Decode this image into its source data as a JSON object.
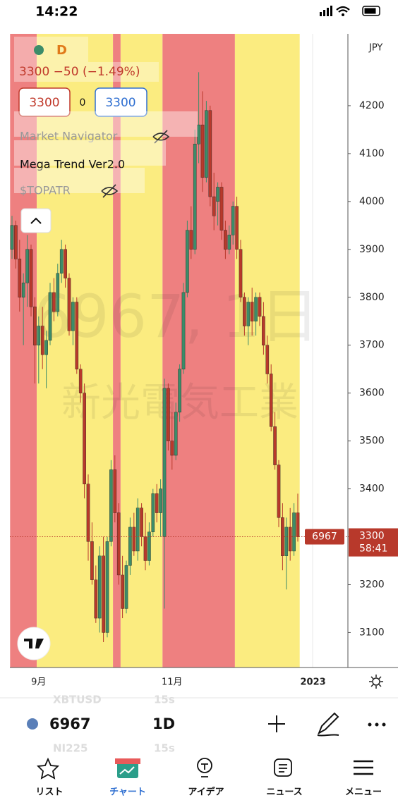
{
  "status": {
    "time": "14:22"
  },
  "chart_data": {
    "type": "candlestick",
    "currency": "JPY",
    "watermark": [
      "6967, 1日",
      "新光電気工業"
    ],
    "legend": {
      "interval": "D",
      "quote": "3300 −50 (−1.49%)",
      "bid": "3300",
      "spread": "0",
      "ask": "3300",
      "indicators": [
        "Market Navigator",
        "Mega Trend Ver2.0",
        "$TOPATR"
      ]
    },
    "ylim": [
      3030,
      4350
    ],
    "yticks": [
      3100,
      3200,
      3300,
      3400,
      3500,
      3600,
      3700,
      3800,
      3900,
      4000,
      4100,
      4200
    ],
    "up_color": "#3c8c69",
    "down_color": "#b8392b",
    "x_labels": [
      {
        "label": "9月",
        "index": 7
      },
      {
        "label": "11月",
        "index": 42
      },
      {
        "label": "2023",
        "index": 79
      }
    ],
    "zones": [
      {
        "start": 0,
        "end": 6,
        "color": "#ee8080"
      },
      {
        "start": 7,
        "end": 26,
        "color": "#fbec80"
      },
      {
        "start": 27,
        "end": 28,
        "color": "#ee8080"
      },
      {
        "start": 29,
        "end": 39,
        "color": "#fbec80"
      },
      {
        "start": 40,
        "end": 58,
        "color": "#ee8080"
      },
      {
        "start": 59,
        "end": 75,
        "color": "#fbec80"
      }
    ],
    "candles": [
      [
        3900,
        3970,
        3880,
        3950
      ],
      [
        3950,
        3960,
        3860,
        3880
      ],
      [
        3880,
        3920,
        3770,
        3800
      ],
      [
        3800,
        3850,
        3700,
        3830
      ],
      [
        3830,
        3930,
        3780,
        3900
      ],
      [
        3900,
        3910,
        3760,
        3780
      ],
      [
        3780,
        3800,
        3620,
        3700
      ],
      [
        3700,
        3760,
        3620,
        3740
      ],
      [
        3740,
        3780,
        3650,
        3680
      ],
      [
        3680,
        3730,
        3610,
        3710
      ],
      [
        3710,
        3830,
        3700,
        3810
      ],
      [
        3810,
        3840,
        3750,
        3770
      ],
      [
        3770,
        3870,
        3760,
        3850
      ],
      [
        3850,
        3920,
        3830,
        3900
      ],
      [
        3900,
        3910,
        3820,
        3840
      ],
      [
        3840,
        3850,
        3720,
        3730
      ],
      [
        3730,
        3800,
        3700,
        3790
      ],
      [
        3790,
        3800,
        3640,
        3650
      ],
      [
        3650,
        3660,
        3580,
        3600
      ],
      [
        3600,
        3620,
        3380,
        3410
      ],
      [
        3410,
        3430,
        3250,
        3290
      ],
      [
        3290,
        3330,
        3200,
        3210
      ],
      [
        3210,
        3240,
        3120,
        3130
      ],
      [
        3130,
        3280,
        3100,
        3260
      ],
      [
        3260,
        3300,
        3080,
        3100
      ],
      [
        3100,
        3300,
        3090,
        3290
      ],
      [
        3290,
        3460,
        3280,
        3440
      ],
      [
        3440,
        3470,
        3330,
        3350
      ],
      [
        3350,
        3370,
        3200,
        3220
      ],
      [
        3220,
        3260,
        3130,
        3150
      ],
      [
        3150,
        3250,
        3140,
        3240
      ],
      [
        3240,
        3340,
        3220,
        3320
      ],
      [
        3320,
        3350,
        3260,
        3270
      ],
      [
        3270,
        3380,
        3250,
        3360
      ],
      [
        3360,
        3370,
        3280,
        3300
      ],
      [
        3300,
        3350,
        3230,
        3250
      ],
      [
        3250,
        3330,
        3240,
        3310
      ],
      [
        3310,
        3400,
        3300,
        3390
      ],
      [
        3390,
        3410,
        3330,
        3350
      ],
      [
        3350,
        3420,
        3300,
        3400
      ],
      [
        3300,
        3630,
        3150,
        3610
      ],
      [
        3610,
        3620,
        3480,
        3500
      ],
      [
        3500,
        3560,
        3440,
        3470
      ],
      [
        3470,
        3580,
        3460,
        3560
      ],
      [
        3560,
        3660,
        3540,
        3650
      ],
      [
        3650,
        3830,
        3640,
        3810
      ],
      [
        3810,
        3960,
        3800,
        3940
      ],
      [
        3940,
        3990,
        3880,
        3900
      ],
      [
        3900,
        4150,
        3890,
        4120
      ],
      [
        4120,
        4270,
        4080,
        4160
      ],
      [
        4160,
        4230,
        4020,
        4050
      ],
      [
        4050,
        4210,
        4040,
        4190
      ],
      [
        4190,
        4200,
        3990,
        4010
      ],
      [
        4010,
        4060,
        3940,
        3970
      ],
      [
        4000,
        4040,
        3950,
        4030
      ],
      [
        4030,
        4040,
        3920,
        3940
      ],
      [
        3940,
        3960,
        3880,
        3900
      ],
      [
        3900,
        3950,
        3890,
        3930
      ],
      [
        3930,
        4000,
        3910,
        3990
      ],
      [
        3990,
        4010,
        3880,
        3900
      ],
      [
        3900,
        3920,
        3790,
        3800
      ],
      [
        3800,
        3810,
        3720,
        3740
      ],
      [
        3740,
        3800,
        3700,
        3790
      ],
      [
        3790,
        3820,
        3720,
        3750
      ],
      [
        3750,
        3810,
        3720,
        3800
      ],
      [
        3800,
        3810,
        3740,
        3760
      ],
      [
        3760,
        3790,
        3680,
        3700
      ],
      [
        3700,
        3720,
        3620,
        3640
      ],
      [
        3640,
        3660,
        3520,
        3530
      ],
      [
        3530,
        3560,
        3440,
        3450
      ],
      [
        3450,
        3460,
        3320,
        3340
      ],
      [
        3340,
        3370,
        3230,
        3260
      ],
      [
        3260,
        3340,
        3190,
        3320
      ],
      [
        3320,
        3360,
        3250,
        3270
      ],
      [
        3270,
        3370,
        3260,
        3350
      ],
      [
        3350,
        3390,
        3290,
        3300
      ]
    ],
    "last_price": 3300,
    "last_tag": "6967",
    "last_label": "3300",
    "countdown": "58:41"
  },
  "toolbar": {
    "ghost_top": [
      "XBTUSD",
      "15s"
    ],
    "symbol": "6967",
    "interval": "1D",
    "ghost_bottom": [
      "NI225",
      "15s"
    ]
  },
  "tabs": [
    "リスト",
    "チャート",
    "アイデア",
    "ニュース",
    "メニュー"
  ]
}
